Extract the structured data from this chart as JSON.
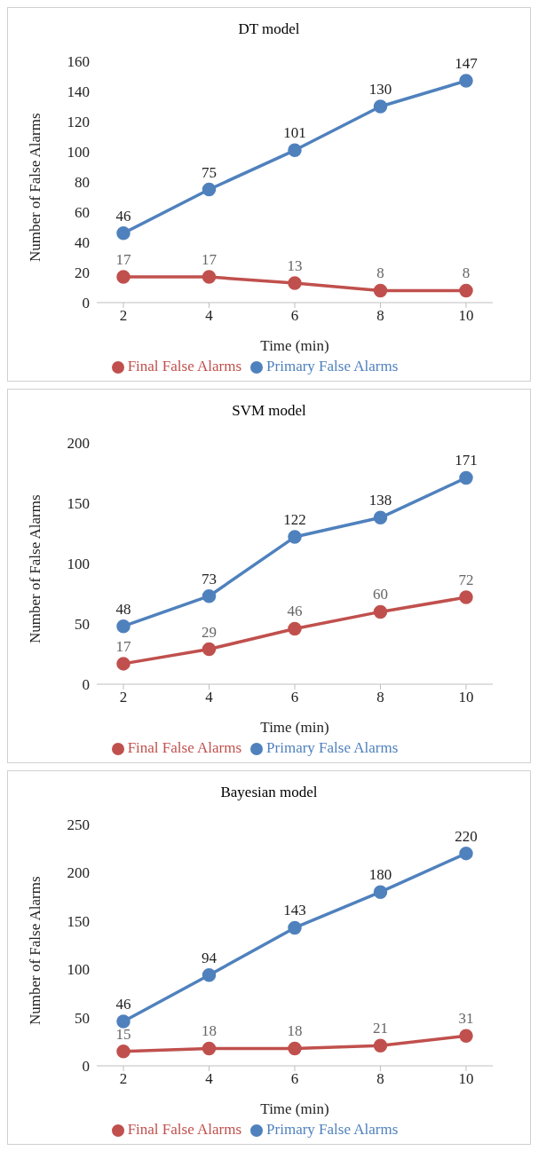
{
  "chart_data": [
    {
      "type": "line",
      "title": "DT model",
      "xlabel": "Time (min)",
      "ylabel": "Number of False Alarms",
      "categories": [
        "2",
        "4",
        "6",
        "8",
        "10"
      ],
      "ylim": [
        0,
        160
      ],
      "yticks": [
        0,
        20,
        40,
        60,
        80,
        100,
        120,
        140,
        160
      ],
      "grid": false,
      "legend": "bottom",
      "marker": "circle",
      "data_labels": true,
      "series": [
        {
          "name": "Primary False Alarms",
          "color": "#4f81bd",
          "values": [
            46,
            75,
            101,
            130,
            147
          ]
        },
        {
          "name": "Final False Alarms",
          "color": "#c0504d",
          "values": [
            17,
            17,
            13,
            8,
            8
          ]
        }
      ]
    },
    {
      "type": "line",
      "title": "SVM model",
      "xlabel": "Time (min)",
      "ylabel": "Number of False Alarms",
      "categories": [
        "2",
        "4",
        "6",
        "8",
        "10"
      ],
      "ylim": [
        0,
        200
      ],
      "yticks": [
        0,
        50,
        100,
        150,
        200
      ],
      "grid": false,
      "legend": "bottom",
      "marker": "circle",
      "data_labels": true,
      "series": [
        {
          "name": "Primary False Alarms",
          "color": "#4f81bd",
          "values": [
            48,
            73,
            122,
            138,
            171
          ]
        },
        {
          "name": "Final False Alarms",
          "color": "#c0504d",
          "values": [
            17,
            29,
            46,
            60,
            72
          ]
        }
      ]
    },
    {
      "type": "line",
      "title": "Bayesian model",
      "xlabel": "Time (min)",
      "ylabel": "Number of False Alarms",
      "categories": [
        "2",
        "4",
        "6",
        "8",
        "10"
      ],
      "ylim": [
        0,
        250
      ],
      "yticks": [
        0,
        50,
        100,
        150,
        200,
        250
      ],
      "grid": false,
      "legend": "bottom",
      "marker": "circle",
      "data_labels": true,
      "series": [
        {
          "name": "Primary False Alarms",
          "color": "#4f81bd",
          "values": [
            46,
            94,
            143,
            180,
            220
          ]
        },
        {
          "name": "Final False Alarms",
          "color": "#c0504d",
          "values": [
            15,
            18,
            18,
            21,
            31
          ]
        }
      ]
    }
  ]
}
